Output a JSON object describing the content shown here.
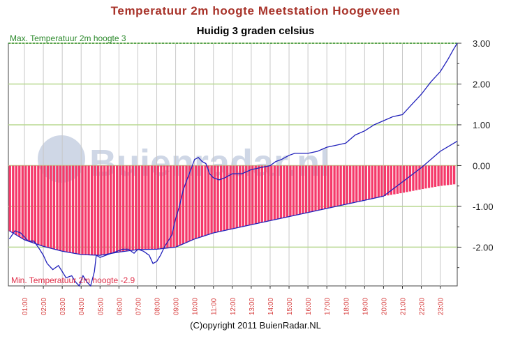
{
  "title": "Temperatuur  2m hoogte Meetstation Hoogeveen",
  "subtitle": "Huidig 3 graden celsius",
  "max_label": "Max. Temperatuur 2m hoogte 3",
  "min_label": "Min. Temperatuur 2m hoogte -2.9",
  "watermark": "Buienradar.nl",
  "copyright": "(C)opyright 2011 BuienRadar.NL",
  "colors": {
    "title": "#a8332a",
    "bars": "#f5396a",
    "line": "#2222bb",
    "grid": "#b8d890",
    "max_line": "#2d8a2d",
    "min_label": "#e0304a",
    "tick_x": "#d63a3a"
  },
  "chart_data": {
    "type": "area",
    "y_unit": "°C",
    "ylim": [
      -2.95,
      3.0
    ],
    "yticks": [
      3.0,
      2.0,
      1.0,
      0.0,
      -1.0,
      -2.0
    ],
    "ytick_labels": [
      "3.00",
      "2.00",
      "1.00",
      "0.00",
      "-1.00",
      "-2.00"
    ],
    "xticks": [
      "01:00",
      "02:00",
      "03:00",
      "04:00",
      "05:00",
      "06:00",
      "07:00",
      "08:00",
      "09:00",
      "10:00",
      "11:00",
      "12:00",
      "13:00",
      "14:00",
      "15:00",
      "16:00",
      "17:00",
      "18:00",
      "19:00",
      "20:00",
      "21:00",
      "22:00",
      "23:00"
    ],
    "xlim_hours": [
      0.15,
      23.9
    ],
    "grid": true,
    "max_value": 3,
    "min_value": -2.9,
    "series": [
      {
        "style": "bars",
        "x": [
          0.2,
          1,
          2,
          3,
          4,
          5,
          6,
          7,
          8,
          9,
          10,
          11,
          12,
          13,
          14,
          15,
          16,
          17,
          18,
          19,
          20,
          21,
          22,
          23,
          23.9
        ],
        "y": [
          -1.6,
          -1.82,
          -1.98,
          -2.1,
          -2.18,
          -2.2,
          -2.12,
          -2.06,
          -2.05,
          -2.0,
          -1.8,
          -1.65,
          -1.55,
          -1.45,
          -1.35,
          -1.25,
          -1.15,
          -1.05,
          -0.95,
          -0.85,
          -0.75,
          -0.67,
          -0.58,
          -0.5,
          -0.45
        ]
      },
      {
        "style": "line",
        "x": [
          0.2,
          0.5,
          0.8,
          1.0,
          1.2,
          1.5,
          1.8,
          2.0,
          2.2,
          2.5,
          2.8,
          3.0,
          3.2,
          3.5,
          3.7,
          3.9,
          4.1,
          4.3,
          4.5,
          4.7,
          4.8,
          5.0,
          5.3,
          5.6,
          5.9,
          6.2,
          6.5,
          6.8,
          7.0,
          7.3,
          7.6,
          7.8,
          8.0,
          8.2,
          8.4,
          8.6,
          8.8,
          9.0,
          9.2,
          9.4,
          9.6,
          9.8,
          10.0,
          10.2,
          10.4,
          10.6,
          10.8,
          11.0,
          11.3,
          11.6,
          12.0,
          12.5,
          13.0,
          13.5,
          14.0,
          14.3,
          14.6,
          15.0,
          15.3,
          15.6,
          16.0,
          16.5,
          17.0,
          17.5,
          18.0,
          18.5,
          19.0,
          19.5,
          20.0,
          20.5,
          21.0,
          21.5,
          22.0,
          22.5,
          23.0,
          23.4,
          23.7,
          23.9
        ],
        "y": [
          -1.8,
          -1.6,
          -1.65,
          -1.75,
          -1.85,
          -1.85,
          -2.05,
          -2.2,
          -2.4,
          -2.55,
          -2.45,
          -2.6,
          -2.75,
          -2.7,
          -2.85,
          -2.95,
          -2.7,
          -2.85,
          -2.95,
          -2.6,
          -2.2,
          -2.25,
          -2.2,
          -2.15,
          -2.1,
          -2.05,
          -2.05,
          -2.15,
          -2.05,
          -2.1,
          -2.2,
          -2.4,
          -2.35,
          -2.2,
          -2.0,
          -1.85,
          -1.7,
          -1.3,
          -1.0,
          -0.6,
          -0.35,
          -0.1,
          0.15,
          0.2,
          0.1,
          0.05,
          -0.2,
          -0.3,
          -0.35,
          -0.3,
          -0.2,
          -0.2,
          -0.1,
          -0.05,
          0.0,
          0.1,
          0.15,
          0.25,
          0.3,
          0.3,
          0.3,
          0.35,
          0.45,
          0.5,
          0.55,
          0.75,
          0.85,
          1.0,
          1.1,
          1.2,
          1.25,
          1.5,
          1.75,
          2.05,
          2.3,
          2.6,
          2.85,
          3.0
        ]
      },
      {
        "style": "line",
        "x": [
          0.2,
          1,
          2,
          3,
          4,
          5,
          6,
          7,
          8,
          9,
          10,
          11,
          12,
          13,
          14,
          15,
          16,
          17,
          18,
          19,
          20,
          21,
          22,
          23,
          23.9
        ],
        "y": [
          -1.6,
          -1.82,
          -1.98,
          -2.1,
          -2.18,
          -2.2,
          -2.12,
          -2.06,
          -2.05,
          -2.0,
          -1.8,
          -1.65,
          -1.55,
          -1.45,
          -1.35,
          -1.25,
          -1.15,
          -1.05,
          -0.95,
          -0.85,
          -0.75,
          -0.4,
          -0.05,
          0.35,
          0.6
        ]
      }
    ]
  }
}
